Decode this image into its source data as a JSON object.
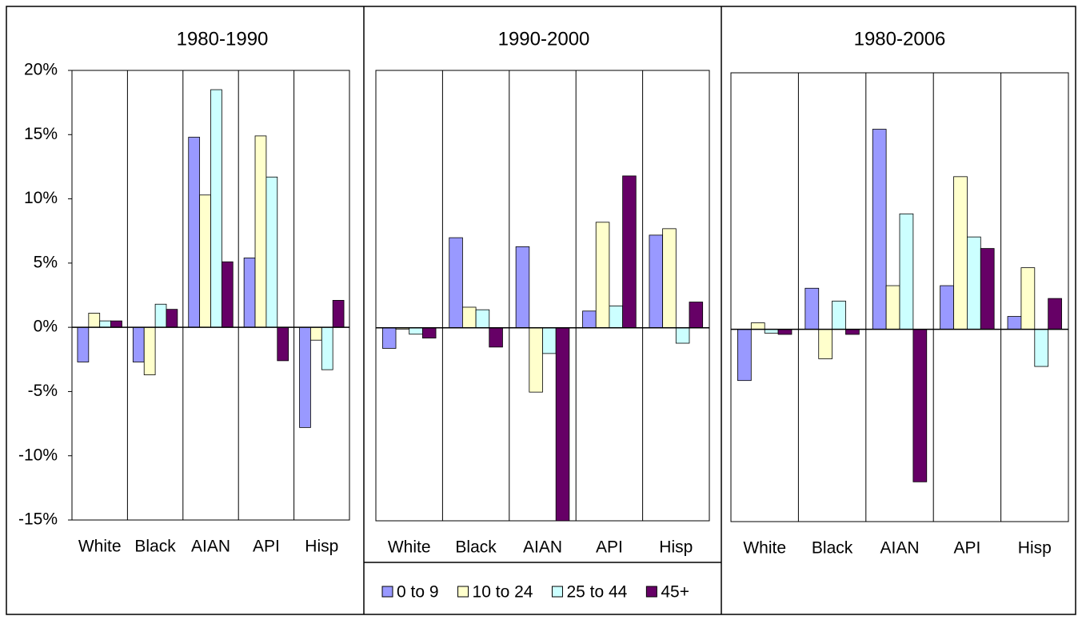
{
  "chart_data": [
    {
      "type": "bar",
      "title": "1980-1990",
      "categories": [
        "White",
        "Black",
        "AIAN",
        "API",
        "Hisp"
      ],
      "series": [
        {
          "color": "#9999ff",
          "values": [
            -2.7,
            -2.7,
            14.8,
            5.4,
            -7.8
          ]
        },
        {
          "color": "#ffffcc",
          "values": [
            1.1,
            -3.7,
            10.3,
            14.9,
            -1.0
          ]
        },
        {
          "color": "#ccffff",
          "values": [
            0.5,
            1.8,
            18.5,
            11.7,
            -3.3
          ]
        },
        {
          "color": "#660066",
          "values": [
            0.5,
            1.4,
            5.1,
            -2.6,
            2.1
          ]
        }
      ],
      "ylim": [
        -15,
        20
      ],
      "yticks": [
        {
          "value": -15,
          "label": "-15%"
        },
        {
          "value": -10,
          "label": "-10%"
        },
        {
          "value": -5,
          "label": "-5%"
        },
        {
          "value": 0,
          "label": "0%"
        },
        {
          "value": 5,
          "label": "5%"
        },
        {
          "value": 10,
          "label": "10%"
        },
        {
          "value": 15,
          "label": "15%"
        },
        {
          "value": 20,
          "label": "20%"
        }
      ]
    },
    {
      "type": "bar",
      "title": "1990-2000",
      "categories": [
        "White",
        "Black",
        "AIAN",
        "API",
        "Hisp"
      ],
      "series": [
        {
          "name": "0 to 9",
          "color": "#9999ff",
          "values": [
            -1.6,
            7.0,
            6.3,
            1.3,
            7.2
          ]
        },
        {
          "name": "10 to 24",
          "color": "#ffffcc",
          "values": [
            -0.1,
            1.6,
            -5.0,
            8.2,
            7.7
          ]
        },
        {
          "name": "25 to 44",
          "color": "#ccffff",
          "values": [
            -0.5,
            1.4,
            -2.0,
            1.7,
            -1.2
          ]
        },
        {
          "name": "45+",
          "color": "#660066",
          "values": [
            -0.8,
            -1.5,
            -15,
            11.8,
            2.0
          ]
        }
      ],
      "ylim": [
        -15,
        20
      ],
      "legend": "bottom"
    },
    {
      "type": "bar",
      "title": "1980-2006",
      "categories": [
        "White",
        "Black",
        "AIAN",
        "API",
        "Hisp"
      ],
      "series": [
        {
          "color": "#9999ff",
          "values": [
            -4.0,
            3.2,
            15.6,
            3.4,
            1.0
          ]
        },
        {
          "color": "#ffffcc",
          "values": [
            0.5,
            -2.3,
            3.4,
            11.9,
            4.8
          ]
        },
        {
          "color": "#ccffff",
          "values": [
            -0.3,
            2.2,
            9.0,
            7.2,
            -2.9
          ]
        },
        {
          "color": "#660066",
          "values": [
            -0.4,
            -0.4,
            -11.9,
            6.3,
            2.4
          ]
        }
      ],
      "ylim": [
        -15,
        20
      ]
    }
  ]
}
